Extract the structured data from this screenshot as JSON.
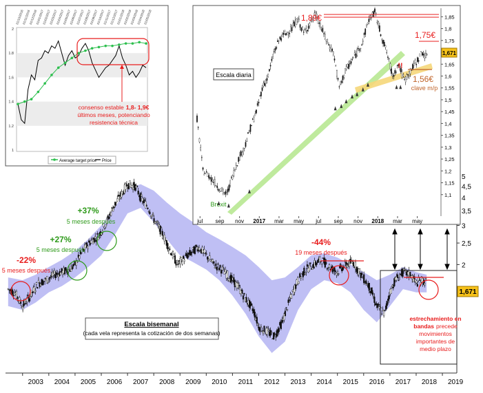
{
  "colors": {
    "band": "#a9a9f0",
    "band_edge": "#8c8ce6",
    "red": "#e81c1c",
    "green": "#2e9a1a",
    "trend_green": "#b4e68c",
    "trend_yellow": "#f5d77a",
    "avg_target": "#2dbf4e",
    "price_hl": "#f7c21a",
    "brown": "#c0642a"
  },
  "chart_data": [
    {
      "id": "main",
      "type": "candlestick",
      "title": "Escala bisemanal",
      "subtitle": "(cada vela representa la cotización de dos semanas)",
      "x_ticks": [
        "2003",
        "2004",
        "2005",
        "2006",
        "2007",
        "2008",
        "2009",
        "2010",
        "2011",
        "2012",
        "2013",
        "2014",
        "2015",
        "2016",
        "2017",
        "2018",
        "2019"
      ],
      "x_range": [
        2002.35,
        2019.55
      ],
      "y_ticks": [
        "5",
        "4,5",
        "4",
        "3,5",
        "3",
        "2,5",
        "2",
        "1,671"
      ],
      "y_scale": "log",
      "y_range": [
        0.65,
        5.6
      ],
      "last_price": "1,671",
      "series": [
        {
          "name": "Price",
          "x": [
            2002.45,
            2002.7,
            2003.0,
            2003.3,
            2003.6,
            2003.9,
            2004.2,
            2004.5,
            2004.8,
            2005.0,
            2005.3,
            2005.6,
            2005.9,
            2006.2,
            2006.5,
            2006.8,
            2007.0,
            2007.3,
            2007.5,
            2007.8,
            2008.0,
            2008.3,
            2008.6,
            2008.9,
            2009.1,
            2009.4,
            2009.7,
            2010.0,
            2010.3,
            2010.6,
            2010.9,
            2011.2,
            2011.5,
            2011.8,
            2012.0,
            2012.3,
            2012.6,
            2012.9,
            2013.2,
            2013.5,
            2013.8,
            2014.1,
            2014.4,
            2014.7,
            2015.0,
            2015.3,
            2015.6,
            2015.9,
            2016.2,
            2016.5,
            2016.8,
            2017.0,
            2017.2,
            2017.5,
            2017.8,
            2018.0,
            2018.2,
            2018.4
          ],
          "values": [
            1.55,
            1.5,
            1.3,
            1.45,
            1.65,
            1.7,
            1.8,
            1.85,
            1.9,
            2.0,
            2.3,
            2.55,
            2.7,
            3.1,
            3.7,
            4.2,
            4.6,
            4.5,
            4.0,
            3.6,
            3.2,
            2.8,
            2.35,
            2.0,
            2.1,
            2.25,
            2.4,
            2.2,
            2.0,
            1.9,
            1.75,
            1.6,
            1.4,
            1.25,
            1.05,
            1.0,
            0.95,
            1.1,
            1.4,
            1.7,
            1.9,
            2.0,
            2.1,
            1.95,
            1.85,
            2.0,
            2.05,
            1.8,
            1.6,
            1.3,
            1.2,
            1.5,
            1.7,
            1.85,
            1.8,
            1.65,
            1.7,
            1.671
          ]
        },
        {
          "name": "Band upper",
          "x": [
            2002.45,
            2003.0,
            2003.5,
            2004.0,
            2004.5,
            2005.0,
            2005.5,
            2006.0,
            2006.5,
            2007.0,
            2007.5,
            2008.0,
            2008.5,
            2009.0,
            2009.5,
            2010.0,
            2010.5,
            2011.0,
            2011.5,
            2012.0,
            2012.5,
            2013.0,
            2013.5,
            2014.0,
            2014.5,
            2015.0,
            2015.5,
            2016.0,
            2016.5,
            2017.0,
            2017.5,
            2018.0,
            2018.4
          ],
          "values": [
            1.75,
            1.7,
            1.8,
            1.95,
            2.1,
            2.3,
            2.6,
            3.0,
            3.6,
            4.4,
            4.6,
            4.3,
            3.8,
            3.4,
            3.1,
            2.8,
            2.6,
            2.4,
            2.2,
            1.95,
            1.7,
            1.75,
            1.95,
            2.2,
            2.25,
            2.15,
            2.0,
            1.85,
            1.7,
            1.8,
            1.95,
            1.85,
            1.8
          ]
        },
        {
          "name": "Band lower",
          "x": [
            2002.45,
            2003.0,
            2003.5,
            2004.0,
            2004.5,
            2005.0,
            2005.5,
            2006.0,
            2006.5,
            2007.0,
            2007.5,
            2008.0,
            2008.5,
            2009.0,
            2009.5,
            2010.0,
            2010.5,
            2011.0,
            2011.5,
            2012.0,
            2012.5,
            2013.0,
            2013.5,
            2014.0,
            2014.5,
            2015.0,
            2015.5,
            2016.0,
            2016.5,
            2017.0,
            2017.5,
            2018.0,
            2018.4
          ],
          "values": [
            1.3,
            1.25,
            1.35,
            1.5,
            1.6,
            1.75,
            1.95,
            2.2,
            2.7,
            3.4,
            3.6,
            3.1,
            2.6,
            2.2,
            2.05,
            1.9,
            1.7,
            1.45,
            1.2,
            0.95,
            0.8,
            0.9,
            1.25,
            1.55,
            1.7,
            1.65,
            1.5,
            1.25,
            1.1,
            1.3,
            1.55,
            1.5,
            1.5
          ]
        }
      ]
    },
    {
      "id": "daily",
      "type": "candlestick",
      "title": "Escala diaria",
      "x_ticks": [
        "jul",
        "sep",
        "nov",
        "2017",
        "mar",
        "may",
        "jul",
        "sep",
        "nov",
        "2018",
        "mar",
        "may"
      ],
      "x_range": [
        0,
        24
      ],
      "y_ticks": [
        "1,85",
        "1,8",
        "1,75",
        "1,7",
        "1,65",
        "1,6",
        "1,55",
        "1,5",
        "1,45",
        "1,4",
        "1,35",
        "1,3",
        "1,25",
        "1,2",
        "1,15",
        "1,1"
      ],
      "y_range": [
        1.05,
        1.88
      ],
      "last_price": "1,671",
      "series": [
        {
          "name": "Price",
          "x": [
            0,
            0.6,
            1.2,
            1.8,
            2.4,
            3.0,
            3.6,
            4.2,
            4.8,
            5.4,
            6.0,
            6.6,
            7.2,
            7.8,
            8.4,
            9.0,
            9.6,
            10.2,
            10.8,
            11.4,
            12.0,
            12.6,
            13.2,
            13.8,
            14.4,
            15.0,
            15.6,
            16.2,
            16.8,
            17.4,
            18.0,
            18.6,
            19.2,
            19.8,
            20.4,
            21.0,
            21.6,
            22.2,
            22.8,
            23.4
          ],
          "values": [
            1.42,
            1.2,
            1.18,
            1.15,
            1.12,
            1.1,
            1.18,
            1.25,
            1.3,
            1.38,
            1.45,
            1.55,
            1.6,
            1.7,
            1.76,
            1.78,
            1.8,
            1.84,
            1.78,
            1.82,
            1.86,
            1.8,
            1.74,
            1.7,
            1.55,
            1.62,
            1.66,
            1.7,
            1.75,
            1.84,
            1.87,
            1.78,
            1.7,
            1.6,
            1.65,
            1.58,
            1.62,
            1.66,
            1.7,
            1.671
          ]
        }
      ]
    },
    {
      "id": "consensus",
      "type": "line",
      "x_ticks": [
        "01/10/2016",
        "01/11/2016",
        "01/12/2016",
        "01/01/2017",
        "01/02/2017",
        "01/03/2017",
        "01/04/2017",
        "01/05/2017",
        "01/06/2017",
        "01/07/2017",
        "01/08/2017",
        "01/09/2017",
        "01/10/2017",
        "01/11/2017",
        "01/12/2017",
        "01/01/2018",
        "01/02/2018",
        "01/03/2018",
        "01/04/2018",
        "01/05/2018"
      ],
      "y_ticks": [
        "2",
        "1.8",
        "1.6",
        "1.4",
        "1.2",
        "1"
      ],
      "y_range": [
        1.0,
        2.0
      ],
      "legend": [
        "Average target price",
        "Price"
      ],
      "series": [
        {
          "name": "Average target price",
          "x": [
            0,
            1,
            2,
            3,
            4,
            5,
            6,
            7,
            8,
            9,
            10,
            11,
            12,
            13,
            14,
            15,
            16,
            17,
            18,
            19
          ],
          "values": [
            1.38,
            1.4,
            1.42,
            1.48,
            1.55,
            1.62,
            1.68,
            1.72,
            1.76,
            1.8,
            1.82,
            1.84,
            1.85,
            1.86,
            1.86,
            1.87,
            1.88,
            1.88,
            1.89,
            1.88
          ]
        },
        {
          "name": "Price",
          "x": [
            0,
            0.5,
            1,
            1.5,
            2,
            2.5,
            3,
            3.5,
            4,
            4.5,
            5,
            5.5,
            6,
            6.5,
            7,
            7.5,
            8,
            8.5,
            9,
            9.5,
            10,
            10.5,
            11,
            11.5,
            12,
            12.5,
            13,
            13.5,
            14,
            14.5,
            15,
            15.5,
            16,
            16.5,
            17,
            17.5,
            18,
            18.5,
            19
          ],
          "values": [
            1.38,
            1.25,
            1.22,
            1.5,
            1.62,
            1.58,
            1.74,
            1.76,
            1.82,
            1.8,
            1.86,
            1.84,
            1.9,
            1.8,
            1.7,
            1.78,
            1.82,
            1.76,
            1.78,
            1.84,
            1.88,
            1.82,
            1.72,
            1.66,
            1.6,
            1.64,
            1.68,
            1.7,
            1.74,
            1.78,
            1.86,
            1.76,
            1.7,
            1.62,
            1.65,
            1.6,
            1.64,
            1.7,
            1.68
          ]
        }
      ]
    }
  ],
  "annotations": {
    "a1_pct": "-22%",
    "a1_txt": "5 meses después",
    "a2_pct": "+27%",
    "a2_txt": "5 meses después",
    "a3_pct": "+37%",
    "a3_txt": "5 meses después",
    "a4_pct": "-44%",
    "a4_txt": "19 meses después",
    "band_note_1": "estrechamiento en",
    "band_note_2": "bandas",
    "band_note_3": "precede",
    "band_note_4": "movimientos",
    "band_note_5": "importantes de",
    "band_note_6": "medio plazo",
    "d_high": "1,89€",
    "d_res": "1,75€",
    "d_sup": "1,56€",
    "d_sup_note": "clave m/p",
    "d_warn": "!!",
    "d_brexit": "Brexit",
    "c_note_1": "consenso estable",
    "c_note_1b": "1,8- 1,9€",
    "c_note_2": "últimos meses, potenciando",
    "c_note_3": "resistencia técnica"
  }
}
